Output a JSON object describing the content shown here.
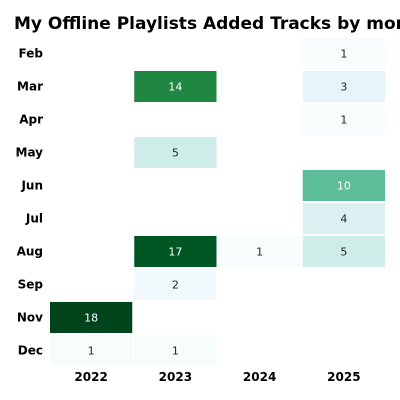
{
  "chart_data": {
    "type": "heatmap",
    "title": "My Offline Playlists Added Tracks by month",
    "xlabel": "",
    "ylabel": "",
    "x_categories": [
      "2022",
      "2023",
      "2024",
      "2025"
    ],
    "y_categories": [
      "Feb",
      "Mar",
      "Apr",
      "May",
      "Jun",
      "Jul",
      "Aug",
      "Sep",
      "Nov",
      "Dec"
    ],
    "values": [
      [
        null,
        null,
        null,
        1
      ],
      [
        null,
        14,
        null,
        3
      ],
      [
        null,
        null,
        null,
        1
      ],
      [
        null,
        5,
        null,
        null
      ],
      [
        null,
        null,
        null,
        10
      ],
      [
        null,
        null,
        null,
        4
      ],
      [
        null,
        17,
        1,
        5
      ],
      [
        null,
        2,
        null,
        null
      ],
      [
        18,
        null,
        null,
        null
      ],
      [
        1,
        1,
        null,
        null
      ]
    ],
    "value_range": [
      1,
      18
    ],
    "colormap": "BuGn",
    "data_labels": true,
    "grid": false,
    "legend": "none"
  }
}
